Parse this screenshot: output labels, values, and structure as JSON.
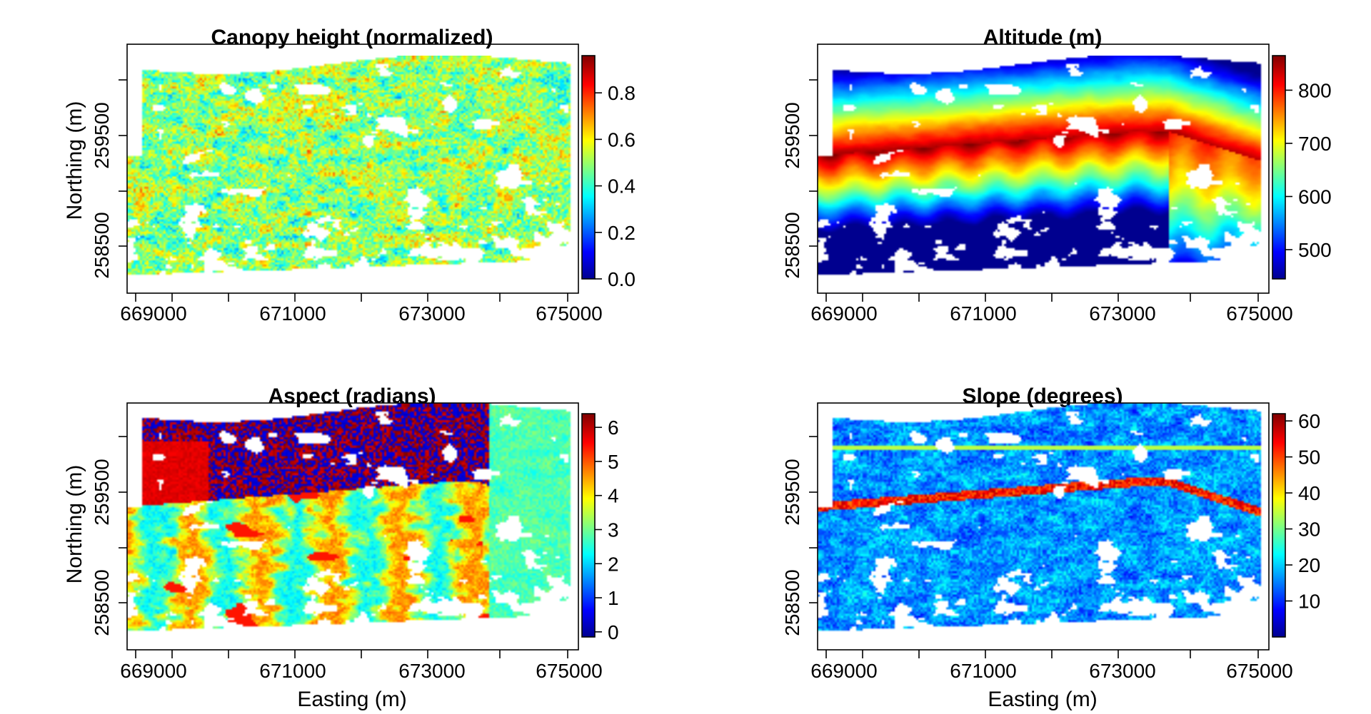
{
  "chart_data": [
    {
      "type": "heatmap",
      "title": "Canopy height (normalized)",
      "xlabel": "",
      "ylabel": "Northing (m)",
      "xticks": [
        "669000",
        "671000",
        "673000",
        "675000"
      ],
      "yticks": [
        "258500",
        "259500"
      ],
      "xlim": [
        668600,
        675200
      ],
      "ylim": [
        258000,
        260300
      ],
      "colorbar": {
        "min": 0.0,
        "max": 0.96,
        "ticks": [
          "0.0",
          "0.2",
          "0.4",
          "0.6",
          "0.8"
        ],
        "tick_values": [
          0,
          0.2,
          0.4,
          0.6,
          0.8
        ]
      },
      "colormap": [
        "#00008f",
        "#0000ff",
        "#00ffff",
        "#ffff00",
        "#ff0000",
        "#800000"
      ]
    },
    {
      "type": "heatmap",
      "title": "Altitude (m)",
      "xlabel": "",
      "ylabel": "",
      "xticks": [
        "669000",
        "671000",
        "673000",
        "675000"
      ],
      "yticks": [
        "258500",
        "259500"
      ],
      "xlim": [
        668600,
        675200
      ],
      "ylim": [
        258000,
        260300
      ],
      "colorbar": {
        "min": 445,
        "max": 865,
        "ticks": [
          "500",
          "600",
          "700",
          "800"
        ],
        "tick_values": [
          500,
          600,
          700,
          800
        ]
      },
      "colormap": [
        "#00008f",
        "#0000ff",
        "#00ffff",
        "#ffff00",
        "#ff0000",
        "#800000"
      ]
    },
    {
      "type": "heatmap",
      "title": "Aspect (radians)",
      "xlabel": "Easting (m)",
      "ylabel": "Northing (m)",
      "xticks": [
        "669000",
        "671000",
        "673000",
        "675000"
      ],
      "yticks": [
        "258500",
        "259500"
      ],
      "xlim": [
        668600,
        675200
      ],
      "ylim": [
        258000,
        260300
      ],
      "colorbar": {
        "min": -0.15,
        "max": 6.4,
        "ticks": [
          "0",
          "1",
          "2",
          "3",
          "4",
          "5",
          "6"
        ],
        "tick_values": [
          0,
          1,
          2,
          3,
          4,
          5,
          6
        ]
      },
      "colormap": [
        "#00008f",
        "#0000ff",
        "#00ffff",
        "#ffff00",
        "#ff0000",
        "#800000"
      ]
    },
    {
      "type": "heatmap",
      "title": "Slope (degrees)",
      "xlabel": "Easting (m)",
      "ylabel": "",
      "xticks": [
        "669000",
        "671000",
        "673000",
        "675000"
      ],
      "yticks": [
        "258500",
        "259500"
      ],
      "xlim": [
        668600,
        675200
      ],
      "ylim": [
        258000,
        260300
      ],
      "colorbar": {
        "min": 0,
        "max": 62,
        "ticks": [
          "10",
          "20",
          "30",
          "40",
          "50",
          "60"
        ],
        "tick_values": [
          10,
          20,
          30,
          40,
          50,
          60
        ]
      },
      "colormap": [
        "#00008f",
        "#0000ff",
        "#00ffff",
        "#ffff00",
        "#ff0000",
        "#800000"
      ]
    }
  ]
}
